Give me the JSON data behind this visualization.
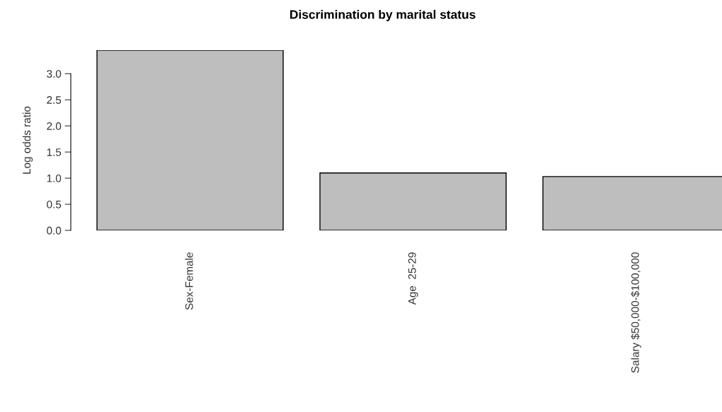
{
  "chart_data": {
    "type": "bar",
    "title": "Discrimination by marital status",
    "ylabel": "Log odds ratio",
    "categories": [
      "Sex-Female",
      "Age  25-29",
      "Salary $50,000-$100,000"
    ],
    "values": [
      3.45,
      1.1,
      1.03
    ],
    "color": "#bebebe",
    "ylim": [
      0,
      3.45
    ],
    "yticks": [
      {
        "value": 0,
        "label": "0.0"
      },
      {
        "value": 0.5,
        "label": "0.5"
      },
      {
        "value": 1,
        "label": "1.0"
      },
      {
        "value": 1.5,
        "label": "1.5"
      },
      {
        "value": 2,
        "label": "2.0"
      },
      {
        "value": 2.5,
        "label": "2.5"
      },
      {
        "value": 3,
        "label": "3.0"
      }
    ],
    "grid": false
  }
}
